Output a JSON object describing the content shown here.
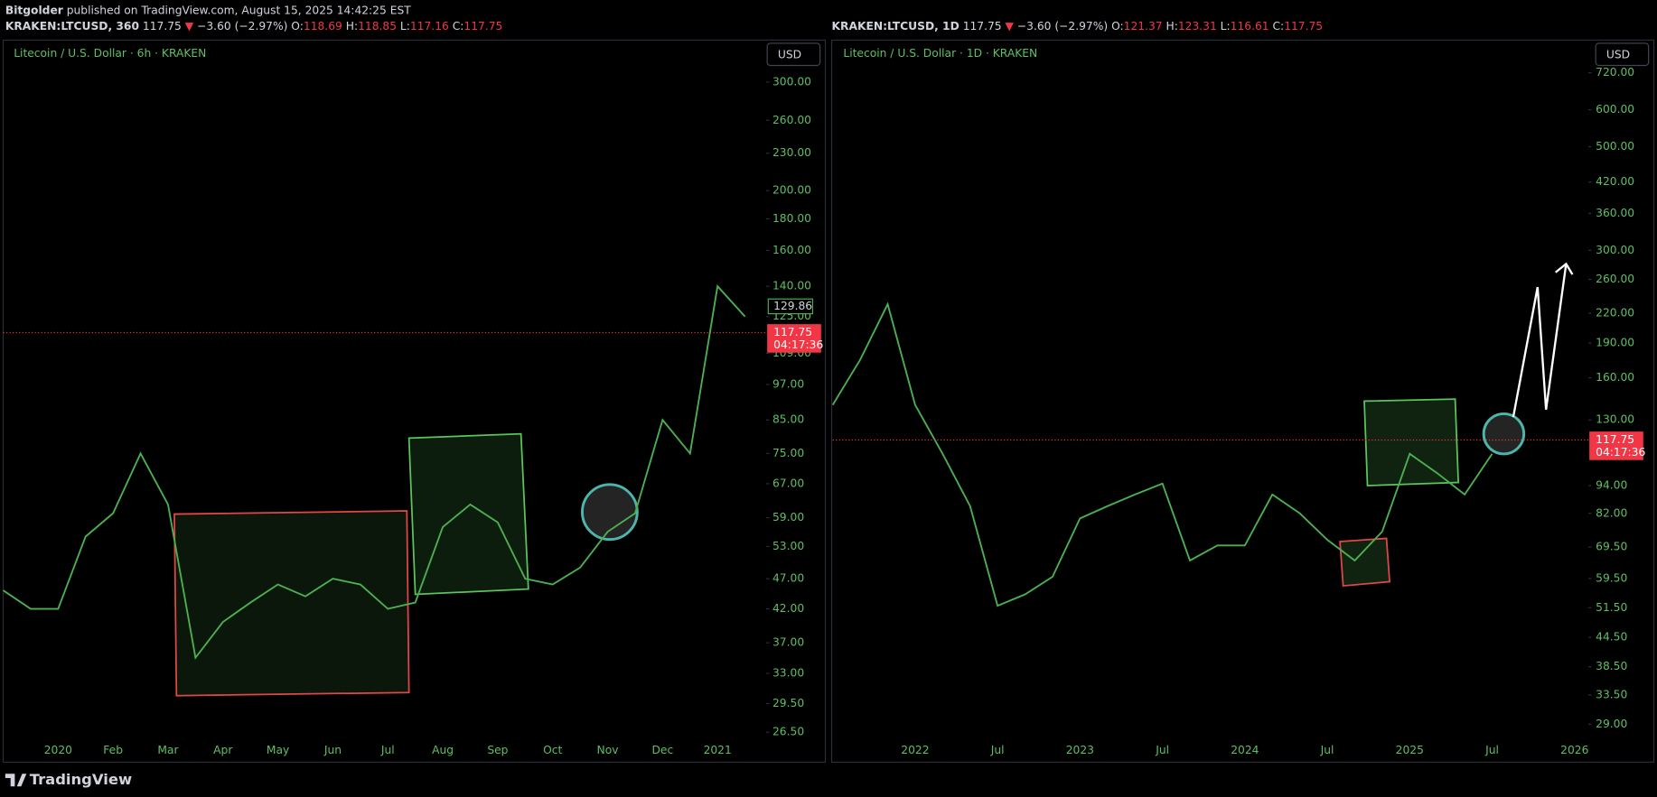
{
  "header": {
    "author": "Bitgolder",
    "published": "published on TradingView.com, August 15, 2025 14:42:25 EST"
  },
  "footer": {
    "brand": "TradingView"
  },
  "chart_data": [
    {
      "type": "line",
      "symbol": "KRAKEN:LTCUSD, 360",
      "last": 117.75,
      "direction": "▼",
      "change": "−3.60 (−2.97%)",
      "ohlc": [
        {
          "label": "O:",
          "value": 118.69
        },
        {
          "label": "H:",
          "value": 118.85
        },
        {
          "label": "L:",
          "value": 117.16
        },
        {
          "label": "C:",
          "value": 117.75
        }
      ],
      "title": "Litecoin / U.S. Dollar · 6h · KRAKEN",
      "currency": "USD",
      "log_scale": true,
      "color": "#4caf50",
      "price_line": {
        "value": 117.75,
        "label": "117.75",
        "color": "#f23645"
      },
      "countdown": "04:17:36",
      "marker": 129.86,
      "categories": [
        null,
        null,
        "2020",
        null,
        "Feb",
        null,
        "Mar",
        null,
        "Apr",
        null,
        "May",
        null,
        "Jun",
        null,
        "Jul",
        null,
        "Aug",
        null,
        "Sep",
        null,
        "Oct",
        null,
        "Nov",
        null,
        "Dec",
        null,
        "2021",
        null
      ],
      "values": [
        45,
        42,
        42,
        55,
        60,
        75,
        62,
        35,
        40,
        43,
        46,
        44,
        47,
        46,
        42,
        43,
        57,
        62,
        58,
        47,
        46,
        49,
        56,
        60,
        85,
        75,
        140,
        125
      ],
      "ylim": [
        23.7,
        348
      ],
      "yticks": [
        {
          "value": 26.5,
          "label": "26.50"
        },
        {
          "value": 29.5,
          "label": "29.50"
        },
        {
          "value": 33,
          "label": "33.00"
        },
        {
          "value": 37,
          "label": "37.00"
        },
        {
          "value": 42,
          "label": "42.00"
        },
        {
          "value": 47,
          "label": "47.00"
        },
        {
          "value": 53,
          "label": "53.00"
        },
        {
          "value": 59,
          "label": "59.00"
        },
        {
          "value": 67,
          "label": "67.00"
        },
        {
          "value": 75,
          "label": "75.00"
        },
        {
          "value": 85,
          "label": "85.00"
        },
        {
          "value": 97,
          "label": "97.00"
        },
        {
          "value": 109,
          "label": "109.00"
        },
        {
          "value": 125,
          "label": "125.00"
        },
        {
          "value": 140,
          "label": "140.00"
        },
        {
          "value": 160,
          "label": "160.00"
        },
        {
          "value": 180,
          "label": "180.00"
        },
        {
          "value": 200,
          "label": "200.00"
        },
        {
          "value": 230,
          "label": "230.00"
        },
        {
          "value": 260,
          "label": "260.00"
        },
        {
          "value": 300,
          "label": "300.00"
        }
      ]
    },
    {
      "type": "line",
      "symbol": "KRAKEN:LTCUSD, 1D",
      "last": 117.75,
      "direction": "▼",
      "change": "−3.60 (−2.97%)",
      "ohlc": [
        {
          "label": "O:",
          "value": 121.37
        },
        {
          "label": "H:",
          "value": 123.31
        },
        {
          "label": "L:",
          "value": 116.61
        },
        {
          "label": "C:",
          "value": 117.75
        }
      ],
      "title": "Litecoin / U.S. Dollar · 1D · KRAKEN",
      "currency": "USD",
      "log_scale": true,
      "color": "#4caf50",
      "price_line": {
        "value": 117.75,
        "label": "117.75",
        "color": "#f23645"
      },
      "countdown": "04:17:36",
      "categories": [
        null,
        null,
        null,
        "2022",
        null,
        null,
        "Jul",
        null,
        null,
        "2023",
        null,
        null,
        "Jul",
        null,
        null,
        "2024",
        null,
        null,
        "Jul",
        null,
        null,
        "2025",
        null,
        null,
        "Jul",
        null,
        null,
        "2026"
      ],
      "values": [
        140,
        175,
        230,
        140,
        110,
        85,
        52,
        55,
        60,
        80,
        85,
        90,
        95,
        65,
        70,
        70,
        90,
        82,
        72,
        65,
        75,
        110,
        100,
        90,
        110,
        null,
        null,
        null
      ],
      "ylim": [
        24.05,
        837
      ],
      "yticks": [
        {
          "value": 29,
          "label": "29.00"
        },
        {
          "value": 33.5,
          "label": "33.50"
        },
        {
          "value": 38.5,
          "label": "38.50"
        },
        {
          "value": 44.5,
          "label": "44.50"
        },
        {
          "value": 51.5,
          "label": "51.50"
        },
        {
          "value": 59.5,
          "label": "59.50"
        },
        {
          "value": 69.5,
          "label": "69.50"
        },
        {
          "value": 82,
          "label": "82.00"
        },
        {
          "value": 94,
          "label": "94.00"
        },
        {
          "value": 130,
          "label": "130.00"
        },
        {
          "value": 160,
          "label": "160.00"
        },
        {
          "value": 190,
          "label": "190.00"
        },
        {
          "value": 220,
          "label": "220.00"
        },
        {
          "value": 260,
          "label": "260.00"
        },
        {
          "value": 300,
          "label": "300.00"
        },
        {
          "value": 360,
          "label": "360.00"
        },
        {
          "value": 420,
          "label": "420.00"
        },
        {
          "value": 500,
          "label": "500.00"
        },
        {
          "value": 600,
          "label": "600.00"
        },
        {
          "value": 720,
          "label": "720.00"
        }
      ]
    }
  ]
}
